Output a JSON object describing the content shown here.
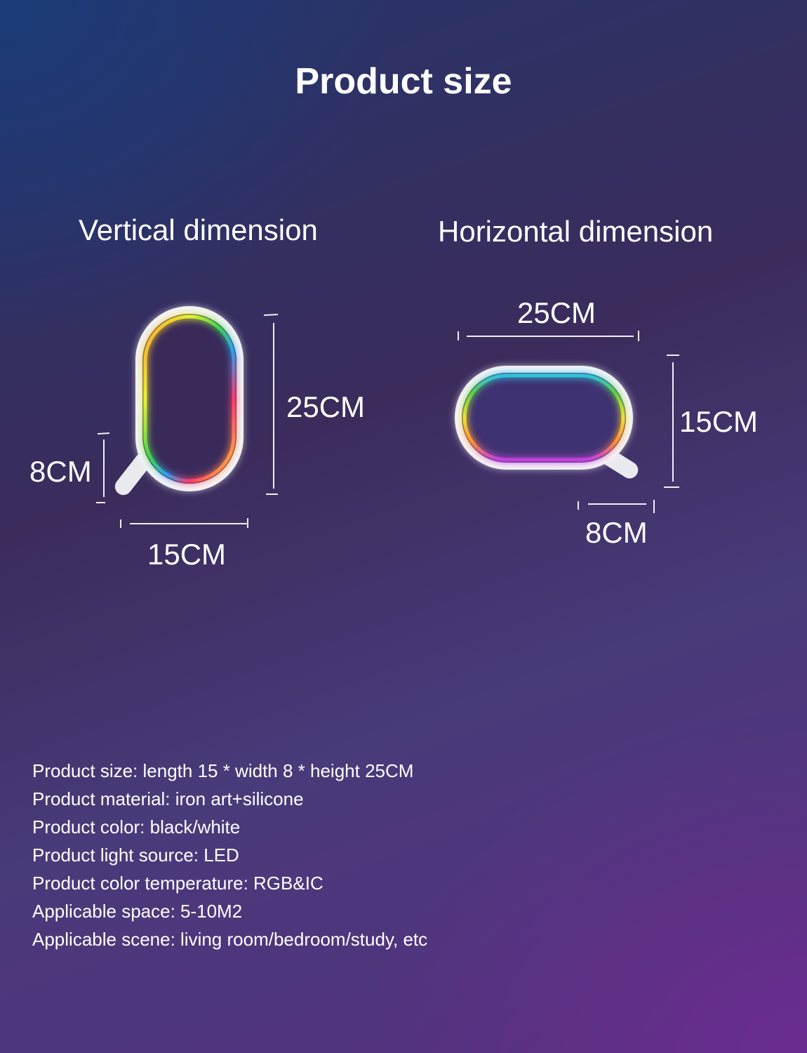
{
  "title": "Product size",
  "vertical": {
    "heading": "Vertical dimension",
    "height_label": "25CM",
    "depth_label": "8CM",
    "width_label": "15CM"
  },
  "horizontal": {
    "heading": "Horizontal dimension",
    "width_label": "25CM",
    "height_label": "15CM",
    "depth_label": "8CM"
  },
  "specs": [
    "Product size: length 15 * width 8 * height 25CM",
    "Product material: iron art+silicone",
    "Product color: black/white",
    "Product light source: LED",
    "Product color temperature: RGB&IC",
    "Applicable space: 5-10M2",
    "Applicable scene: living room/bedroom/study, etc"
  ]
}
